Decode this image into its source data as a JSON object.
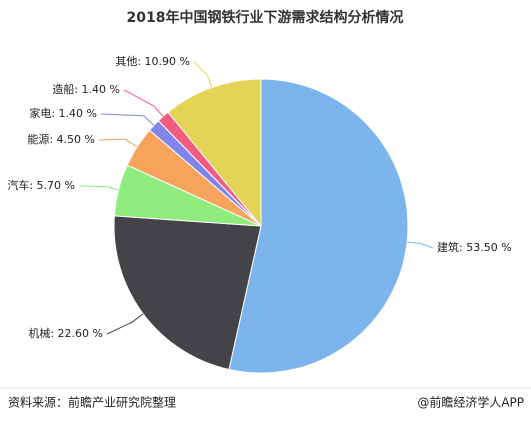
{
  "chart_data": {
    "type": "pie",
    "title": "2018年中国钢铁行业下游需求结构分析情况",
    "values": [
      53.5,
      22.6,
      5.7,
      4.5,
      1.4,
      1.4,
      10.9
    ],
    "value_labels": [
      "建筑: 53.50 %",
      "机械: 22.60 %",
      "汽车: 5.70 %",
      "能源: 4.50 %",
      "家电: 1.40 %",
      "造船: 1.40 %",
      "其他: 10.90 %"
    ],
    "colors": [
      "#7cb5ec",
      "#434348",
      "#90ed7d",
      "#f7a35c",
      "#8085e9",
      "#f15c80",
      "#e4d354"
    ],
    "source": "资料来源：前瞻产业研究院整理",
    "brand": "@前瞻经济学人APP"
  }
}
